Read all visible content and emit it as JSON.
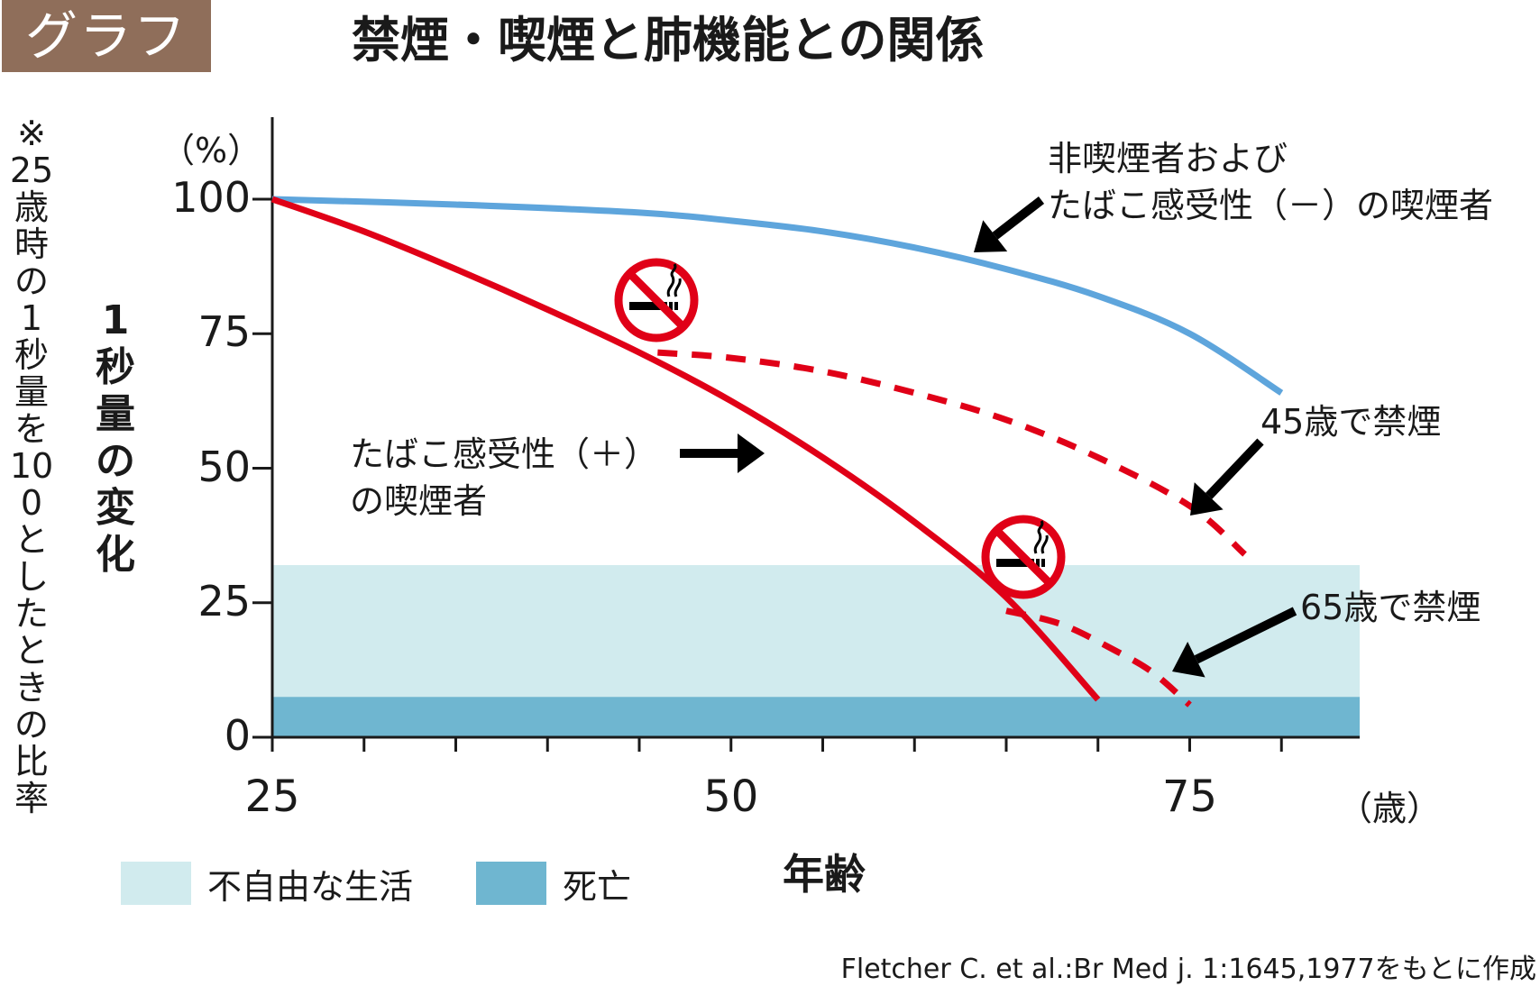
{
  "badge": "グラフ",
  "title": "禁煙・喫煙と肺機能との関係",
  "note": "※25歳時の1秒量を100としたときの比率",
  "ylabel": "1秒量の変化",
  "y_unit": "（%）",
  "x_unit": "（歳）",
  "xlabel": "年齢",
  "source": "Fletcher C. et al.:Br Med j. 1:1645,1977をもとに作成",
  "colors": {
    "nonsmoker": "#5ea5dc",
    "smoker": "#e00017",
    "disability": "#d1ebee",
    "death": "#6fb6d0",
    "badge": "#8f6e5a",
    "no_smoking_sign": "#e00017"
  },
  "icons": [
    "no-smoking-icon",
    "arrow-icon"
  ],
  "annotations": {
    "nonsmoker_line1": "非喫煙者および",
    "nonsmoker_line2": "たばこ感受性（－）の喫煙者",
    "smoker_line1": "たばこ感受性（＋）",
    "smoker_line2": "の喫煙者",
    "quit45": "45歳で禁煙",
    "quit65": "65歳で禁煙"
  },
  "legend": [
    {
      "label": "不自由な生活",
      "color": "#d1ebee"
    },
    {
      "label": "死亡",
      "color": "#6fb6d0"
    }
  ],
  "chart_data": {
    "type": "line",
    "title": "禁煙・喫煙と肺機能との関係",
    "xlabel": "年齢",
    "ylabel": "1秒量の変化",
    "xlim": [
      25,
      85
    ],
    "ylim": [
      0,
      100
    ],
    "x_ticks": [
      25,
      50,
      75
    ],
    "y_ticks": [
      0,
      25,
      50,
      75,
      100
    ],
    "grid": false,
    "bands": [
      {
        "name": "不自由な生活",
        "y_from": 7.5,
        "y_to": 32
      },
      {
        "name": "死亡",
        "y_from": 0,
        "y_to": 7.5
      }
    ],
    "series": [
      {
        "id": "nonsmoker",
        "style": "solid",
        "x": [
          25,
          35,
          45,
          50,
          55,
          60,
          65,
          70,
          75,
          80
        ],
        "y": [
          100,
          99,
          97.5,
          96,
          94,
          91,
          87,
          82,
          75,
          64
        ]
      },
      {
        "id": "smoker",
        "style": "solid",
        "x": [
          25,
          30,
          35,
          40,
          45,
          50,
          55,
          60,
          65,
          70
        ],
        "y": [
          100,
          94,
          87,
          79.5,
          71.5,
          62.5,
          52,
          40,
          26,
          7
        ]
      },
      {
        "id": "quit45",
        "style": "dashed",
        "x": [
          46,
          50,
          55,
          60,
          65,
          70,
          75,
          78
        ],
        "y": [
          71.5,
          70.5,
          68,
          64,
          59,
          52,
          43,
          34
        ]
      },
      {
        "id": "quit65",
        "style": "dashed",
        "x": [
          65,
          68,
          71,
          73,
          75
        ],
        "y": [
          23.5,
          21,
          16,
          12,
          6
        ]
      }
    ]
  }
}
